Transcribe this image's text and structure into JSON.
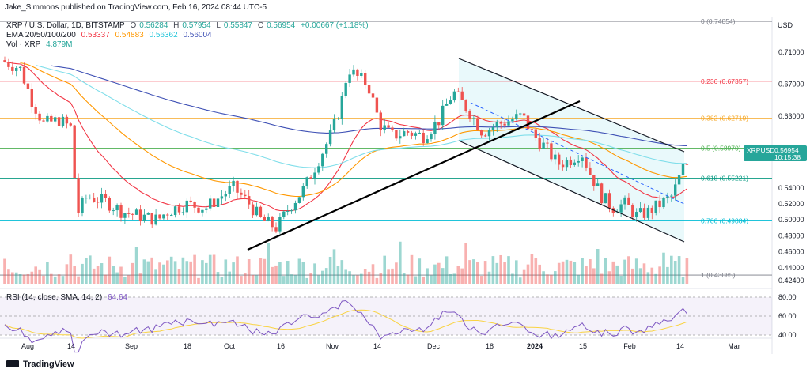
{
  "header": {
    "publisher": "Jake_Simmons published on TradingView.com, Feb 16, 2024 08:44 UTC-5",
    "symbol": "XRP / U.S. Dollar, 1D, BITSTAMP",
    "ohlc": {
      "o_label": "O",
      "o": "0.56284",
      "h_label": "H",
      "h": "0.57954",
      "l_label": "L",
      "l": "0.55847",
      "c_label": "C",
      "c": "0.56954",
      "change": "+0.00667 (+1.18%)"
    },
    "ema_label": "EMA 20/50/100/200",
    "ema_values": [
      "0.53337",
      "0.54883",
      "0.56362",
      "0.56004"
    ],
    "vol_label": "Vol · XRP",
    "vol_value": "4.879M",
    "currency": "USD"
  },
  "price_tag": {
    "symbol": "XRPUSD",
    "price": "0.56954",
    "countdown": "10:15:38"
  },
  "fib_levels": [
    {
      "text": "0 (0.74854)",
      "value": 0.74854,
      "color": "#787b86"
    },
    {
      "text": "0.236 (0.67357)",
      "value": 0.67357,
      "color": "#f23645"
    },
    {
      "text": "0.382 (0.62719)",
      "value": 0.62719,
      "color": "#f5a623"
    },
    {
      "text": "0.5 (0.58970)",
      "value": 0.5897,
      "color": "#4caf50"
    },
    {
      "text": "0.618 (0.55221)",
      "value": 0.55221,
      "color": "#089981"
    },
    {
      "text": "0.786 (0.49884)",
      "value": 0.49884,
      "color": "#00bcd4"
    },
    {
      "text": "1 (0.43085)",
      "value": 0.43085,
      "color": "#787b86"
    }
  ],
  "rsi": {
    "label": "RSI (14, close, SMA, 14, 2)",
    "value": "64.64",
    "ticks": [
      "80.00",
      "60.00",
      "40.00"
    ]
  },
  "footer": {
    "brand": "TradingView"
  },
  "chart_data": {
    "type": "candlestick",
    "y_axis_ticks": [
      "0.71000",
      "0.67000",
      "0.63000",
      "0.59000",
      "0.54000",
      "0.52000",
      "0.50000",
      "0.48000",
      "0.46000",
      "0.44000",
      "0.42400"
    ],
    "ylim": [
      0.418,
      0.752
    ],
    "x_axis_ticks": [
      "Aug",
      "14",
      "Sep",
      "18",
      "Oct",
      "16",
      "Nov",
      "14",
      "Dec",
      "18",
      "2024",
      "15",
      "Feb",
      "14",
      "Mar"
    ],
    "colors": {
      "up": "#26a69a",
      "down": "#ef5350",
      "ema20": "#f23645",
      "ema50": "#ff9800",
      "ema100": "#80deea",
      "ema200": "#3f51b5",
      "rsi": "#7e57c2",
      "rsi_sma": "#f9d342"
    }
  }
}
